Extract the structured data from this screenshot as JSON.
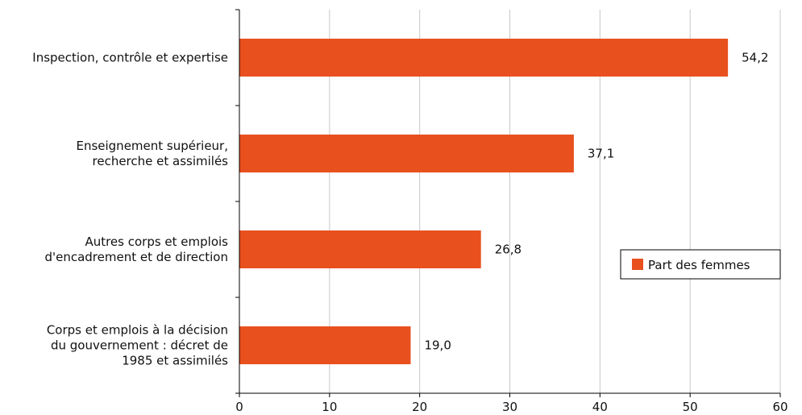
{
  "chart_data": {
    "type": "bar",
    "orientation": "horizontal",
    "categories": [
      [
        "Inspection, contrôle et expertise"
      ],
      [
        "Enseignement supérieur,",
        "recherche et assimilés"
      ],
      [
        "Autres corps et emplois",
        "d'encadrement et de direction"
      ],
      [
        "Corps et emplois à la décision",
        "du gouvernement : décret de",
        "1985 et assimilés"
      ]
    ],
    "series": [
      {
        "name": "Part des femmes",
        "values": [
          54.2,
          37.1,
          26.8,
          19.0
        ]
      }
    ],
    "value_labels": [
      "54,2",
      "37,1",
      "26,8",
      "19,0"
    ],
    "xlim": [
      0,
      60
    ],
    "xticks": [
      0,
      10,
      20,
      30,
      40,
      50,
      60
    ],
    "grid": "vertical",
    "legend_position": "right",
    "colors": {
      "bar": "#e8501e",
      "grid": "#c8c8c8",
      "axis": "#000000"
    }
  }
}
